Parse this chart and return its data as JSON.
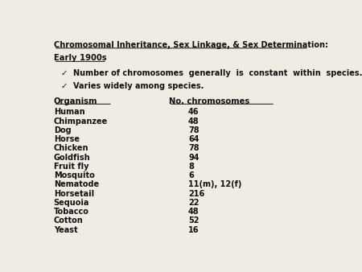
{
  "title": "Chromosomal Inheritance, Sex Linkage, & Sex Determination:",
  "subtitle": "Early 1900s",
  "bullets": [
    "Number of chromosomes  generally  is  constant  within  species.",
    "Varies widely among species."
  ],
  "col1_header": "Organism",
  "col2_header": "No. chromosomes",
  "organisms": [
    "Human",
    "Chimpanzee",
    "Dog",
    "Horse",
    "Chicken",
    "Goldfish",
    "Fruit fly",
    "Mosquito",
    "Nematode",
    "Horsetail",
    "Sequoia",
    "Tobacco",
    "Cotton",
    "Yeast"
  ],
  "chromosomes": [
    "46",
    "48",
    "78",
    "64",
    "78",
    "94",
    "8",
    "6",
    "11(m), 12(f)",
    "216",
    "22",
    "48",
    "52",
    "16"
  ],
  "bg_color": "#f0ece4",
  "text_color": "#111111"
}
